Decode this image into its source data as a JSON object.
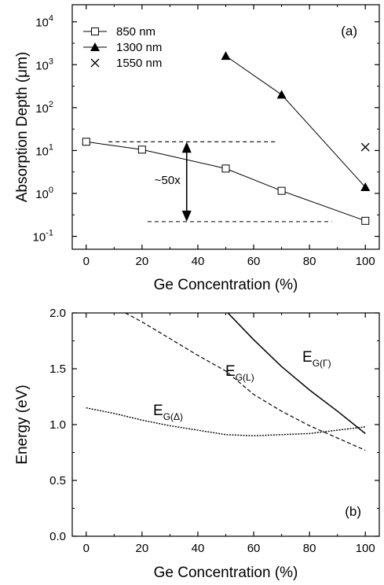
{
  "chart_data": [
    {
      "type": "line",
      "panel_label": "(a)",
      "xlabel": "Ge Concentration (%)",
      "ylabel_prefix": "Absorption Depth (",
      "ylabel_unit": "μm",
      "ylabel_suffix": ")",
      "xlim": [
        -5,
        105
      ],
      "ylim": [
        0.05,
        25000
      ],
      "yscale": "log",
      "x_ticks": [
        0,
        20,
        40,
        60,
        80,
        100
      ],
      "y_tick_labels": [
        {
          "base": "10",
          "exp": "-1",
          "value": 0.1
        },
        {
          "base": "10",
          "exp": "0",
          "value": 1
        },
        {
          "base": "10",
          "exp": "1",
          "value": 10
        },
        {
          "base": "10",
          "exp": "2",
          "value": 100
        },
        {
          "base": "10",
          "exp": "3",
          "value": 1000
        },
        {
          "base": "10",
          "exp": "4",
          "value": 10000
        }
      ],
      "legend_position": "top-left",
      "series": [
        {
          "name": "850 nm",
          "marker": "open-square",
          "connected": true,
          "x": [
            0,
            20,
            50,
            70,
            100
          ],
          "y": [
            16,
            10.5,
            3.8,
            1.15,
            0.23
          ]
        },
        {
          "name": "1300 nm",
          "marker": "filled-triangle",
          "connected": true,
          "x": [
            50,
            70,
            100
          ],
          "y": [
            1600,
            200,
            1.4
          ]
        },
        {
          "name": "1550 nm",
          "marker": "cross",
          "connected": false,
          "x": [
            100
          ],
          "y": [
            12
          ]
        }
      ],
      "reference_lines": [
        {
          "style": "dashed",
          "y": 16,
          "x_range": [
            8,
            68
          ]
        },
        {
          "style": "dashed",
          "y": 0.22,
          "x_range": [
            22,
            88
          ]
        }
      ],
      "annotation": {
        "text": "~50x",
        "arrow_x": 36,
        "arrow_from": 16,
        "arrow_to": 0.22
      }
    },
    {
      "type": "line",
      "panel_label": "(b)",
      "xlabel": "Ge Concentration (%)",
      "ylabel": "Energy (eV)",
      "xlim": [
        -5,
        105
      ],
      "ylim": [
        0.0,
        2.0
      ],
      "x_ticks": [
        0,
        20,
        40,
        60,
        80,
        100
      ],
      "y_ticks": [
        0.0,
        0.5,
        1.0,
        1.5,
        2.0
      ],
      "y_tick_format": 1,
      "series": [
        {
          "label_main": "E",
          "label_sub": "G(Γ)",
          "line_style": "solid",
          "x": [
            50,
            60,
            70,
            80,
            90,
            100
          ],
          "y": [
            2.02,
            1.76,
            1.52,
            1.31,
            1.12,
            0.92
          ]
        },
        {
          "label_main": "E",
          "label_sub": "G(L)",
          "line_style": "dashed",
          "x": [
            14,
            20,
            30,
            40,
            50,
            60,
            70,
            80,
            90,
            100
          ],
          "y": [
            2.0,
            1.92,
            1.77,
            1.62,
            1.48,
            1.27,
            1.12,
            0.99,
            0.88,
            0.77
          ]
        },
        {
          "label_main": "E",
          "label_sub": "G(Δ)",
          "line_style": "dotted",
          "x": [
            0,
            10,
            20,
            30,
            40,
            50,
            60,
            70,
            80,
            90,
            100
          ],
          "y": [
            1.15,
            1.1,
            1.04,
            0.99,
            0.95,
            0.91,
            0.9,
            0.91,
            0.92,
            0.95,
            0.98
          ]
        }
      ]
    }
  ]
}
